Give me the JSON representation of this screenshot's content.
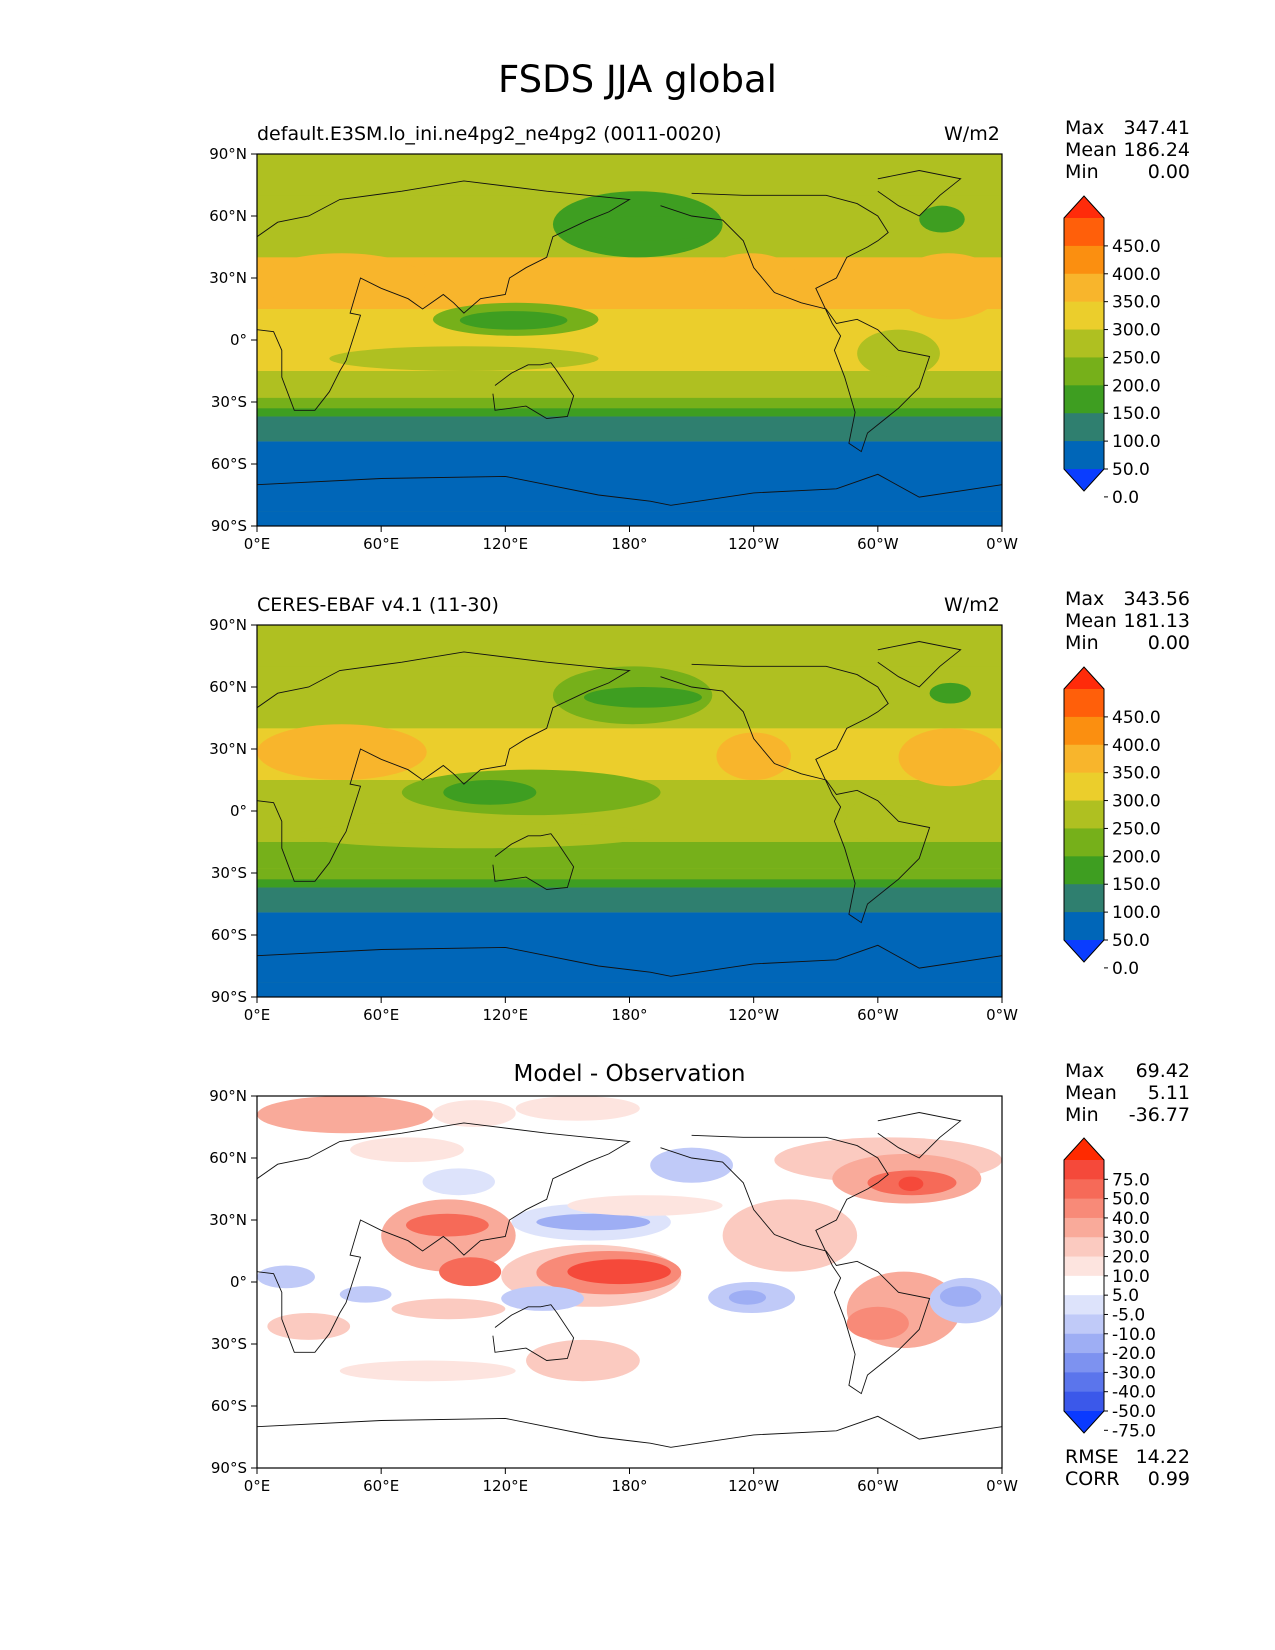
{
  "figure_title": "FSDS JJA global",
  "panels": [
    {
      "left_title": "default.E3SM.lo_ini.ne4pg2_ne4pg2 (0011-0020)",
      "right_title": "W/m2",
      "stats": [
        [
          "Max",
          "347.41"
        ],
        [
          "Mean",
          "186.24"
        ],
        [
          "Min",
          "0.00"
        ]
      ],
      "colorbar": {
        "labels": [
          "450.0",
          "400.0",
          "350.0",
          "300.0",
          "250.0",
          "200.0",
          "150.0",
          "100.0",
          "50.0",
          "0.0"
        ],
        "colors": [
          "#ff2b0a",
          "#ff5f0a",
          "#fb8f10",
          "#f8b52c",
          "#ebce2c",
          "#afc021",
          "#76b01a",
          "#3e9e21",
          "#2f7f6f",
          "#0066b8",
          "#0a3dff"
        ]
      }
    },
    {
      "left_title": "CERES-EBAF v4.1 (11-30)",
      "right_title": "W/m2",
      "stats": [
        [
          "Max",
          "343.56"
        ],
        [
          "Mean",
          "181.13"
        ],
        [
          "Min",
          "0.00"
        ]
      ],
      "colorbar": {
        "labels": [
          "450.0",
          "400.0",
          "350.0",
          "300.0",
          "250.0",
          "200.0",
          "150.0",
          "100.0",
          "50.0",
          "0.0"
        ],
        "colors": [
          "#ff2b0a",
          "#ff5f0a",
          "#fb8f10",
          "#f8b52c",
          "#ebce2c",
          "#afc021",
          "#76b01a",
          "#3e9e21",
          "#2f7f6f",
          "#0066b8",
          "#0a3dff"
        ]
      }
    },
    {
      "center_title": "Model - Observation",
      "stats": [
        [
          "Max",
          "69.42"
        ],
        [
          "Mean",
          "5.11"
        ],
        [
          "Min",
          "-36.77"
        ]
      ],
      "extra_stats": [
        [
          "RMSE",
          "14.22"
        ],
        [
          "CORR",
          "0.99"
        ]
      ],
      "colorbar": {
        "labels": [
          "75.0",
          "50.0",
          "40.0",
          "30.0",
          "20.0",
          "10.0",
          "5.0",
          "-5.0",
          "-10.0",
          "-20.0",
          "-30.0",
          "-40.0",
          "-50.0",
          "-75.0"
        ],
        "colors": [
          "#ff2a00",
          "#f5493a",
          "#f66a58",
          "#f88a78",
          "#f9aa9a",
          "#fbcac0",
          "#fde4df",
          "#ffffff",
          "#dde3fb",
          "#c0caf8",
          "#9eaef4",
          "#7d92f0",
          "#5b75ec",
          "#3b58ea",
          "#0a3aff"
        ]
      }
    }
  ],
  "axes": {
    "y_ticks": [
      "90°N",
      "60°N",
      "30°N",
      "0°",
      "30°S",
      "60°S",
      "90°S"
    ],
    "x_ticks": [
      "0°E",
      "60°E",
      "120°E",
      "180°",
      "120°W",
      "60°W",
      "0°W"
    ]
  },
  "chart_data": [
    {
      "type": "heatmap",
      "title": "default.E3SM.lo_ini.ne4pg2_ne4pg2 (0011-0020)",
      "units": "W/m2",
      "xlim": [
        0,
        360
      ],
      "ylim": [
        -90,
        90
      ],
      "contour_levels": [
        0,
        50,
        100,
        150,
        200,
        250,
        300,
        350,
        400,
        450
      ],
      "max": 347.41,
      "mean": 186.24,
      "min": 0.0,
      "lat_bands": [
        {
          "lat": [
            90,
            70
          ],
          "value": 200
        },
        {
          "lat": [
            70,
            40
          ],
          "value": 220
        },
        {
          "lat": [
            40,
            15
          ],
          "value": 300
        },
        {
          "lat": [
            15,
            -15
          ],
          "value": 250
        },
        {
          "lat": [
            -15,
            -28
          ],
          "value": 200
        },
        {
          "lat": [
            -28,
            -33
          ],
          "value": 150
        },
        {
          "lat": [
            -33,
            -37
          ],
          "value": 110
        },
        {
          "lat": [
            -37,
            -49
          ],
          "value": 75
        },
        {
          "lat": [
            -49,
            -83
          ],
          "value": 25
        },
        {
          "lat": [
            -83,
            -90
          ],
          "value": 0
        }
      ],
      "regions": [
        {
          "lon": [
            0,
            82
          ],
          "lat": [
            42,
            15
          ],
          "value": 330
        },
        {
          "lon": [
            215,
            262
          ],
          "lat": [
            42,
            15
          ],
          "value": 330
        },
        {
          "lon": [
            308,
            360
          ],
          "lat": [
            42,
            10
          ],
          "value": 320
        },
        {
          "lon": [
            143,
            225
          ],
          "lat": [
            72,
            40
          ],
          "value": 140
        },
        {
          "lon": [
            158,
            220
          ],
          "lat": [
            60,
            48
          ],
          "value": 120
        },
        {
          "lon": [
            320,
            342
          ],
          "lat": [
            65,
            52
          ],
          "value": 120
        },
        {
          "lon": [
            85,
            165
          ],
          "lat": [
            18,
            2
          ],
          "value": 180
        },
        {
          "lon": [
            98,
            150
          ],
          "lat": [
            14,
            5
          ],
          "value": 130
        },
        {
          "lon": [
            35,
            165
          ],
          "lat": [
            -3,
            -15
          ],
          "value": 220
        },
        {
          "lon": [
            205,
            265
          ],
          "lat": [
            -2,
            -12
          ],
          "value": 270
        },
        {
          "lon": [
            290,
            330
          ],
          "lat": [
            5,
            -18
          ],
          "value": 220
        }
      ]
    },
    {
      "type": "heatmap",
      "title": "CERES-EBAF v4.1 (11-30)",
      "units": "W/m2",
      "xlim": [
        0,
        360
      ],
      "ylim": [
        -90,
        90
      ],
      "contour_levels": [
        0,
        50,
        100,
        150,
        200,
        250,
        300,
        350,
        400,
        450
      ],
      "max": 343.56,
      "mean": 181.13,
      "min": 0.0,
      "lat_bands": [
        {
          "lat": [
            90,
            70
          ],
          "value": 200
        },
        {
          "lat": [
            70,
            40
          ],
          "value": 220
        },
        {
          "lat": [
            40,
            15
          ],
          "value": 290
        },
        {
          "lat": [
            15,
            -15
          ],
          "value": 240
        },
        {
          "lat": [
            -15,
            -28
          ],
          "value": 190
        },
        {
          "lat": [
            -28,
            -33
          ],
          "value": 150
        },
        {
          "lat": [
            -33,
            -37
          ],
          "value": 110
        },
        {
          "lat": [
            -37,
            -49
          ],
          "value": 75
        },
        {
          "lat": [
            -49,
            -83
          ],
          "value": 25
        },
        {
          "lat": [
            -83,
            -90
          ],
          "value": 0
        }
      ],
      "regions": [
        {
          "lon": [
            0,
            82
          ],
          "lat": [
            42,
            15
          ],
          "value": 330
        },
        {
          "lon": [
            222,
            258
          ],
          "lat": [
            38,
            15
          ],
          "value": 320
        },
        {
          "lon": [
            310,
            360
          ],
          "lat": [
            40,
            12
          ],
          "value": 320
        },
        {
          "lon": [
            143,
            220
          ],
          "lat": [
            70,
            42
          ],
          "value": 150
        },
        {
          "lon": [
            158,
            215
          ],
          "lat": [
            60,
            50
          ],
          "value": 120
        },
        {
          "lon": [
            325,
            345
          ],
          "lat": [
            62,
            52
          ],
          "value": 120
        },
        {
          "lon": [
            70,
            195
          ],
          "lat": [
            20,
            -2
          ],
          "value": 180
        },
        {
          "lon": [
            90,
            135
          ],
          "lat": [
            15,
            3
          ],
          "value": 120
        },
        {
          "lon": [
            20,
            190
          ],
          "lat": [
            -5,
            -18
          ],
          "value": 200
        },
        {
          "lon": [
            285,
            325
          ],
          "lat": [
            8,
            -15
          ],
          "value": 200
        }
      ]
    },
    {
      "type": "heatmap",
      "title": "Model - Observation",
      "xlim": [
        0,
        360
      ],
      "ylim": [
        -90,
        90
      ],
      "contour_levels": [
        -75,
        -50,
        -40,
        -30,
        -20,
        -10,
        -5,
        5,
        10,
        20,
        30,
        40,
        50,
        75
      ],
      "max": 69.42,
      "mean": 5.11,
      "min": -36.77,
      "rmse": 14.22,
      "corr": 0.99,
      "regions": [
        {
          "lon": [
            0,
            85
          ],
          "lat": [
            90,
            72
          ],
          "value": 22
        },
        {
          "lon": [
            85,
            125
          ],
          "lat": [
            88,
            75
          ],
          "value": 8
        },
        {
          "lon": [
            125,
            185
          ],
          "lat": [
            90,
            78
          ],
          "value": 8
        },
        {
          "lon": [
            250,
            360
          ],
          "lat": [
            70,
            48
          ],
          "value": 10
        },
        {
          "lon": [
            278,
            350
          ],
          "lat": [
            62,
            38
          ],
          "value": 22
        },
        {
          "lon": [
            295,
            338
          ],
          "lat": [
            54,
            42
          ],
          "value": 40
        },
        {
          "lon": [
            310,
            322
          ],
          "lat": [
            51,
            44
          ],
          "value": 55
        },
        {
          "lon": [
            60,
            125
          ],
          "lat": [
            40,
            5
          ],
          "value": 22
        },
        {
          "lon": [
            72,
            112
          ],
          "lat": [
            33,
            22
          ],
          "value": 40
        },
        {
          "lon": [
            88,
            118
          ],
          "lat": [
            12,
            -2
          ],
          "value": 45
        },
        {
          "lon": [
            118,
            205
          ],
          "lat": [
            18,
            -12
          ],
          "value": 18
        },
        {
          "lon": [
            135,
            205
          ],
          "lat": [
            15,
            -6
          ],
          "value": 35
        },
        {
          "lon": [
            150,
            200
          ],
          "lat": [
            11,
            -1
          ],
          "value": 55
        },
        {
          "lon": [
            123,
            200
          ],
          "lat": [
            38,
            20
          ],
          "value": -10
        },
        {
          "lon": [
            135,
            190
          ],
          "lat": [
            33,
            25
          ],
          "value": -22
        },
        {
          "lon": [
            225,
            290
          ],
          "lat": [
            40,
            5
          ],
          "value": 15
        },
        {
          "lon": [
            285,
            340
          ],
          "lat": [
            5,
            -32
          ],
          "value": 20
        },
        {
          "lon": [
            285,
            315
          ],
          "lat": [
            -12,
            -28
          ],
          "value": 30
        },
        {
          "lon": [
            218,
            260
          ],
          "lat": [
            0,
            -15
          ],
          "value": -15
        },
        {
          "lon": [
            228,
            246
          ],
          "lat": [
            -4,
            -11
          ],
          "value": -28
        },
        {
          "lon": [
            325,
            360
          ],
          "lat": [
            2,
            -20
          ],
          "value": -18
        },
        {
          "lon": [
            330,
            350
          ],
          "lat": [
            -2,
            -12
          ],
          "value": -30
        },
        {
          "lon": [
            0,
            28
          ],
          "lat": [
            8,
            -3
          ],
          "value": -12
        },
        {
          "lon": [
            118,
            158
          ],
          "lat": [
            -2,
            -14
          ],
          "value": -20
        },
        {
          "lon": [
            40,
            65
          ],
          "lat": [
            -2,
            -10
          ],
          "value": -12
        },
        {
          "lon": [
            65,
            120
          ],
          "lat": [
            -8,
            -18
          ],
          "value": 10
        },
        {
          "lon": [
            5,
            45
          ],
          "lat": [
            -15,
            -28
          ],
          "value": 10
        },
        {
          "lon": [
            40,
            125
          ],
          "lat": [
            -38,
            -48
          ],
          "value": 8
        },
        {
          "lon": [
            130,
            185
          ],
          "lat": [
            -28,
            -48
          ],
          "value": 12
        },
        {
          "lon": [
            150,
            225
          ],
          "lat": [
            42,
            32
          ],
          "value": 8
        },
        {
          "lon": [
            80,
            115
          ],
          "lat": [
            55,
            42
          ],
          "value": -8
        },
        {
          "lon": [
            190,
            230
          ],
          "lat": [
            65,
            48
          ],
          "value": -12
        },
        {
          "lon": [
            45,
            100
          ],
          "lat": [
            70,
            58
          ],
          "value": 8
        }
      ]
    }
  ]
}
